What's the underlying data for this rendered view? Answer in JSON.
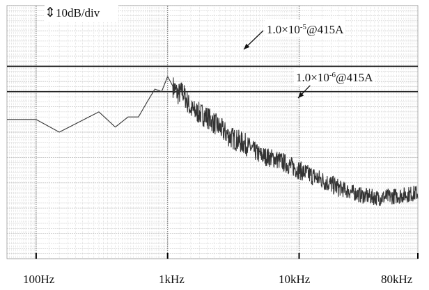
{
  "chart_data": {
    "type": "line",
    "xscale": "log",
    "xlim": [
      60,
      80000
    ],
    "ylim_divisions": 10,
    "grid": true,
    "scale_label": "10dB/div",
    "x_tick_labels": [
      "100Hz",
      "1kHz",
      "10kHz",
      "80kHz"
    ],
    "x_ticks_hz": [
      100,
      1000,
      10000,
      80000
    ],
    "limit_lines": [
      {
        "mantissa": "1.0",
        "times": "×",
        "base": "10",
        "exponent": "-5",
        "suffix": "@415A",
        "level_div": 7.6
      },
      {
        "mantissa": "1.0",
        "times": "×",
        "base": "10",
        "exponent": "-6",
        "suffix": "@415A",
        "level_div": 6.6
      }
    ],
    "series": [
      {
        "color": "#333333",
        "x": [
          60,
          100,
          150,
          300,
          400,
          500,
          600,
          700,
          800,
          900,
          1000,
          1100,
          1200,
          1300,
          1500,
          2000,
          3000,
          4000,
          5000,
          7000,
          10000,
          15000,
          20000,
          30000,
          40000,
          60000,
          80000
        ],
        "y": [
          5.5,
          5.5,
          5.0,
          5.8,
          5.2,
          5.6,
          5.6,
          6.2,
          6.7,
          6.6,
          7.2,
          6.8,
          6.5,
          6.6,
          5.9,
          5.6,
          4.8,
          4.5,
          4.1,
          3.9,
          3.5,
          3.1,
          2.8,
          2.5,
          2.4,
          2.5,
          2.6
        ]
      }
    ]
  },
  "colors": {
    "grid": "#c6c6c6",
    "grid_major": "#888888",
    "limit": "#222222",
    "trace": "#333333"
  }
}
